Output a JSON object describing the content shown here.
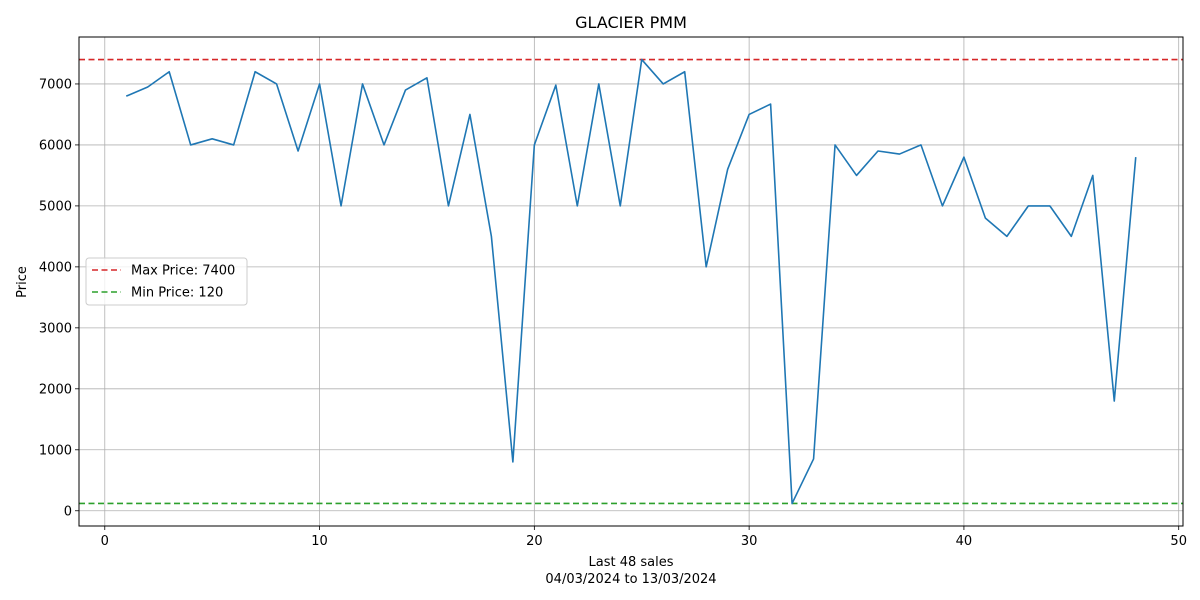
{
  "chart_data": {
    "type": "line",
    "title": "GLACIER PMM",
    "xlabel": "Last 48 sales",
    "xlabel_sub": "04/03/2024 to 13/03/2024",
    "ylabel": "Price",
    "xlim": [
      -1.2,
      50.2
    ],
    "ylim": [
      -250,
      7770
    ],
    "xticks": [
      0,
      10,
      20,
      30,
      40,
      50
    ],
    "yticks": [
      0,
      1000,
      2000,
      3000,
      4000,
      5000,
      6000,
      7000
    ],
    "grid": true,
    "legend_position": "center-left",
    "series": [
      {
        "color": "#1f77b4",
        "x": [
          1,
          2,
          3,
          4,
          5,
          6,
          7,
          8,
          9,
          10,
          11,
          12,
          13,
          14,
          15,
          16,
          17,
          18,
          19,
          20,
          21,
          22,
          23,
          24,
          25,
          26,
          27,
          28,
          29,
          30,
          31,
          32,
          33,
          34,
          35,
          36,
          37,
          38,
          39,
          40,
          41,
          42,
          43,
          44,
          45,
          46,
          47,
          48
        ],
        "y": [
          6800,
          6950,
          7200,
          6000,
          6100,
          6000,
          7200,
          7000,
          5900,
          7000,
          5000,
          7000,
          6000,
          6900,
          7100,
          5000,
          6500,
          4500,
          800,
          6000,
          6980,
          5000,
          7000,
          5000,
          7400,
          7000,
          7200,
          4000,
          5600,
          6500,
          6670,
          120,
          850,
          6000,
          5500,
          5900,
          5850,
          6000,
          5000,
          5800,
          4800,
          4500,
          5000,
          5000,
          4500,
          5500,
          1800,
          5800
        ]
      }
    ],
    "reference_lines": [
      {
        "name": "Max Price: 7400",
        "value": 7400,
        "color": "#d62728",
        "style": "dashed"
      },
      {
        "name": "Min Price: 120",
        "value": 120,
        "color": "#2ca02c",
        "style": "dashed"
      }
    ]
  }
}
